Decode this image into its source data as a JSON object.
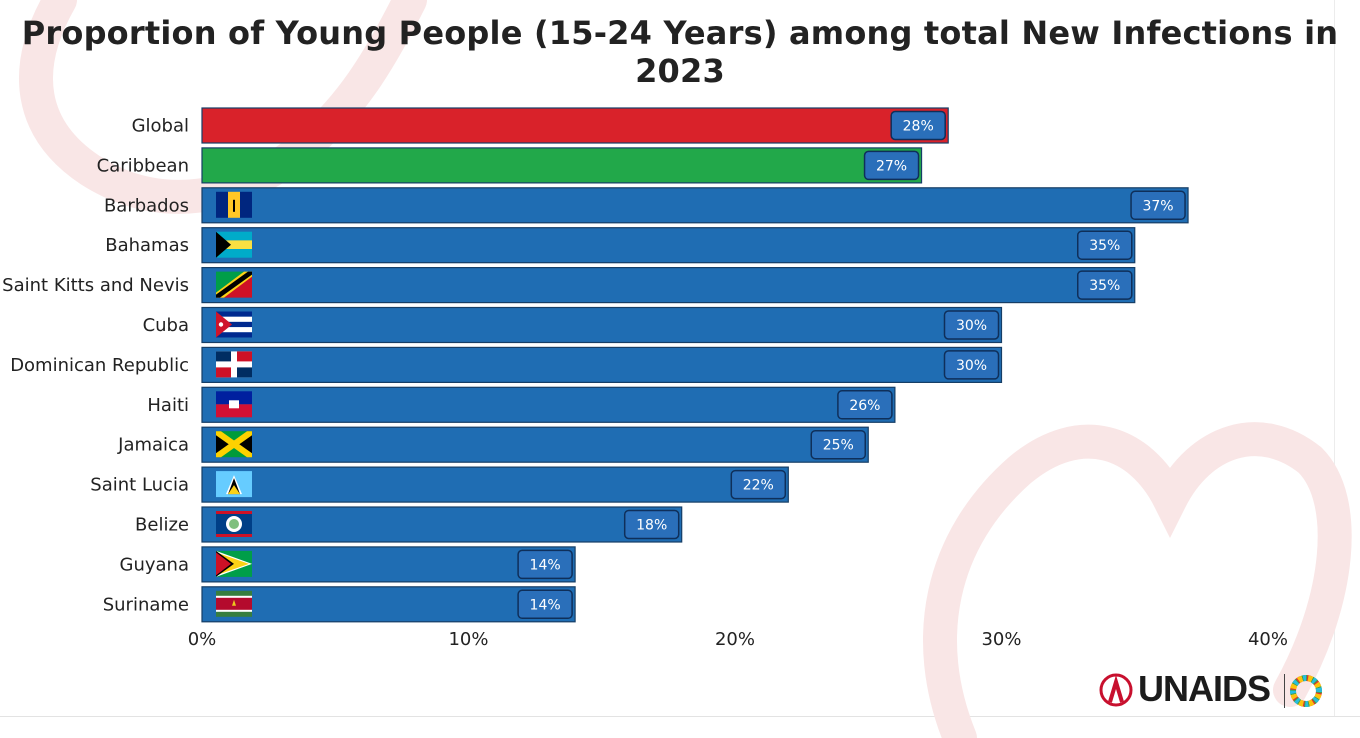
{
  "chart_data": {
    "type": "bar",
    "orientation": "horizontal",
    "title": "Proportion of Young People (15-24 Years) among total New Infections in 2023",
    "categories": [
      "Global",
      "Caribbean",
      "Barbados",
      "Bahamas",
      "Saint Kitts and Nevis",
      "Cuba",
      "Dominican Republic",
      "Haiti",
      "Jamaica",
      "Saint Lucia",
      "Belize",
      "Guyana",
      "Suriname"
    ],
    "values": [
      28,
      27,
      37,
      35,
      35,
      30,
      30,
      26,
      25,
      22,
      18,
      14,
      14
    ],
    "value_labels": [
      "28%",
      "27%",
      "37%",
      "35%",
      "35%",
      "30%",
      "30%",
      "26%",
      "25%",
      "22%",
      "18%",
      "14%",
      "14%"
    ],
    "flags": [
      "",
      "",
      "barbados-flag-icon",
      "bahamas-flag-icon",
      "saint-kitts-and-nevis-flag-icon",
      "cuba-flag-icon",
      "dominican-republic-flag-icon",
      "haiti-flag-icon",
      "jamaica-flag-icon",
      "saint-lucia-flag-icon",
      "belize-flag-icon",
      "guyana-flag-icon",
      "suriname-flag-icon"
    ],
    "bar_colors": [
      "#d9222a",
      "#22a84a",
      "#1f6db3",
      "#1f6db3",
      "#1f6db3",
      "#1f6db3",
      "#1f6db3",
      "#1f6db3",
      "#1f6db3",
      "#1f6db3",
      "#1f6db3",
      "#1f6db3",
      "#1f6db3"
    ],
    "xlim": [
      0,
      40
    ],
    "xticks": [
      0,
      10,
      20,
      30,
      40
    ],
    "xtick_labels": [
      "0%",
      "10%",
      "20%",
      "30%",
      "40%"
    ],
    "xlabel": "",
    "ylabel": "",
    "grid": false
  },
  "brand": {
    "logo_text": "UNAIDS"
  },
  "colors": {
    "label_box": "#2a6fba",
    "label_border": "#0f2f5a",
    "ribbon": "#f7e3e3"
  }
}
